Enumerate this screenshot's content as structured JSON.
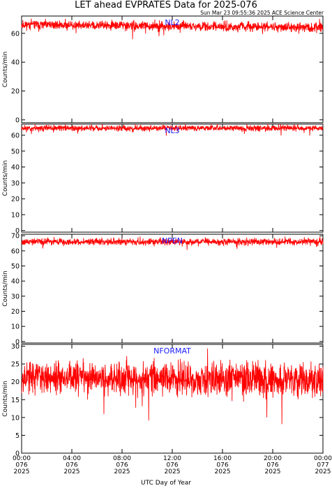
{
  "header": {
    "title": "LET ahead EVPRATES Data for 2025-076",
    "timestamp": "Sun Mar 23 09:55:36 2025 ACE Science Center"
  },
  "colors": {
    "trace": "#ff0000",
    "label": "#2020ff",
    "axis": "#000000"
  },
  "chart_data": [
    {
      "type": "line",
      "series_label": "NL2",
      "ylabel": "Counts/min",
      "ylim": [
        -2,
        72
      ],
      "yticks": [
        0,
        20,
        40,
        60
      ],
      "baseline": 66,
      "noise": 2.2,
      "drift": -2,
      "seed": 11
    },
    {
      "type": "line",
      "series_label": "NL3",
      "ylabel": "Counts/min",
      "ylim": [
        -1,
        67
      ],
      "yticks": [
        0,
        10,
        20,
        30,
        40,
        50,
        60
      ],
      "baseline": 64.5,
      "noise": 1.3,
      "drift": 0,
      "seed": 23
    },
    {
      "type": "line",
      "series_label": "NPEN",
      "ylabel": "Counts/min",
      "ylim": [
        -1,
        71
      ],
      "yticks": [
        0,
        10,
        20,
        30,
        40,
        50,
        60,
        70
      ],
      "baseline": 66,
      "noise": 1.6,
      "drift": 0,
      "seed": 37
    },
    {
      "type": "line",
      "series_label": "NFORMAT",
      "ylabel": "Counts/min",
      "ylim": [
        0,
        30.5
      ],
      "yticks": [
        0,
        5,
        10,
        15,
        20,
        25,
        30
      ],
      "baseline": 21.5,
      "noise": 3.2,
      "drift": -1,
      "seed": 53
    }
  ],
  "x_axis": {
    "title": "UTC Day of Year",
    "ticks": [
      {
        "time": "00:00",
        "day": "076",
        "year": "2025"
      },
      {
        "time": "04:00",
        "day": "076",
        "year": "2025"
      },
      {
        "time": "08:00",
        "day": "076",
        "year": "2025"
      },
      {
        "time": "12:00",
        "day": "076",
        "year": "2025"
      },
      {
        "time": "16:00",
        "day": "076",
        "year": "2025"
      },
      {
        "time": "20:00",
        "day": "076",
        "year": "2025"
      },
      {
        "time": "00:00",
        "day": "077",
        "year": "2025"
      }
    ]
  }
}
